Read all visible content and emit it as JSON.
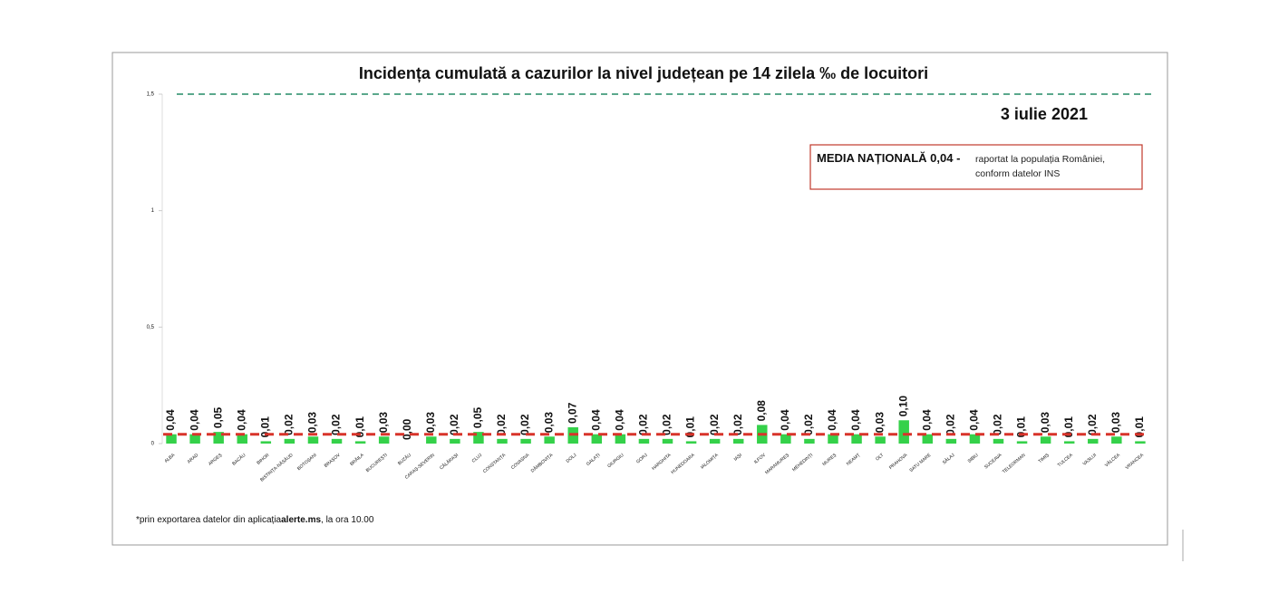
{
  "chart_data": {
    "type": "bar",
    "title": "Incidența cumulată a cazurilor la nivel județean pe 14 zilela ‰ de locuitori",
    "date": "3 iulie 2021",
    "annotation": {
      "bold": "MEDIA NAȚIONALĂ 0,04 -",
      "text": "raportat la populația României, conform datelor INS"
    },
    "footnote": {
      "before": "*prin exportarea datelor din aplicația",
      "bold": "alerte.ms",
      "after": ", la ora 10.00"
    },
    "categories": [
      "ALBA",
      "ARAD",
      "ARGEȘ",
      "BACĂU",
      "BIHOR",
      "BISTRIȚA-NĂSĂUD",
      "BOTOȘANI",
      "BRAȘOV",
      "BRĂILA",
      "BUCUREȘTI",
      "BUZĂU",
      "CARAȘ-SEVERIN",
      "CĂLĂRAȘI",
      "CLUJ",
      "CONSTANȚA",
      "COVASNA",
      "DÂMBOVIȚA",
      "DOLJ",
      "GALAȚI",
      "GIURGIU",
      "GORJ",
      "HARGHITA",
      "HUNEDOARA",
      "IALOMIȚA",
      "IAȘI",
      "ILFOV",
      "MARAMUREȘ",
      "MEHEDINȚI",
      "MUREȘ",
      "NEAMȚ",
      "OLT",
      "PRAHOVA",
      "SATU MARE",
      "SĂLAJ",
      "SIBIU",
      "SUCEAVA",
      "TELEORMAN",
      "TIMIȘ",
      "TULCEA",
      "VASLUI",
      "VÂLCEA",
      "VRANCEA"
    ],
    "values": [
      0.04,
      0.04,
      0.05,
      0.04,
      0.01,
      0.02,
      0.03,
      0.02,
      0.01,
      0.03,
      0.0,
      0.03,
      0.02,
      0.05,
      0.02,
      0.02,
      0.03,
      0.07,
      0.04,
      0.04,
      0.02,
      0.02,
      0.01,
      0.02,
      0.02,
      0.08,
      0.04,
      0.02,
      0.04,
      0.04,
      0.03,
      0.1,
      0.04,
      0.02,
      0.04,
      0.02,
      0.01,
      0.03,
      0.01,
      0.02,
      0.03,
      0.01
    ],
    "value_labels": [
      "0,04",
      "0,04",
      "0,05",
      "0,04",
      "0,01",
      "0,02",
      "0,03",
      "0,02",
      "0,01",
      "0,03",
      "0,00",
      "0,03",
      "0,02",
      "0,05",
      "0,02",
      "0,02",
      "0,03",
      "0,07",
      "0,04",
      "0,04",
      "0,02",
      "0,02",
      "0,01",
      "0,02",
      "0,02",
      "0,08",
      "0,04",
      "0,02",
      "0,04",
      "0,04",
      "0,03",
      "0,10",
      "0,04",
      "0,02",
      "0,04",
      "0,02",
      "0,01",
      "0,03",
      "0,01",
      "0,02",
      "0,03",
      "0,01"
    ],
    "color": "#35d14a",
    "mean_line": {
      "value": 0.04,
      "color": "#d8332a"
    },
    "threshold_line": {
      "value": 1.5,
      "color": "#5aa88c"
    },
    "ylim": [
      0,
      1.5
    ],
    "yticks": [
      0,
      {
        "value": 0.5,
        "label": "0,5"
      },
      1,
      {
        "value": 1.5,
        "label": "1,5"
      }
    ]
  }
}
